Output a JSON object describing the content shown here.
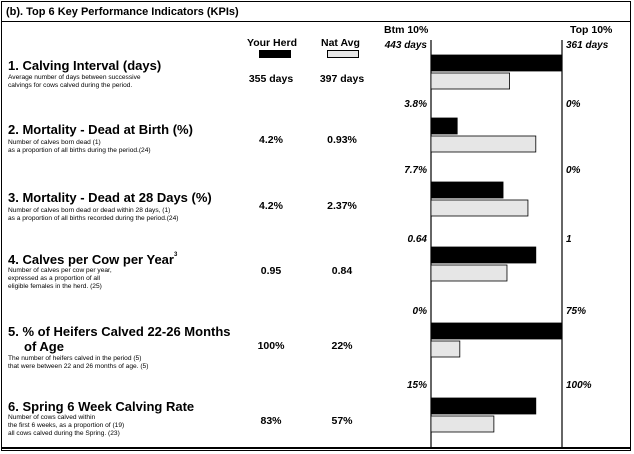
{
  "header": {
    "title": "(b). Top 6 Key Performance Indicators (KPIs)"
  },
  "columns": {
    "your_herd": "Your Herd",
    "nat_avg": "Nat Avg",
    "btm": "Btm 10%",
    "top": "Top 10%"
  },
  "colors": {
    "your_herd": "#000000",
    "nat_avg": "#e6e6e6"
  },
  "kpis": [
    {
      "title": "1. Calving Interval (days)",
      "desc": [
        "Average number of days between successive",
        "calvings for cows calved during the period."
      ],
      "your_herd": "355 days",
      "nat_avg": "397 days"
    },
    {
      "title": "2. Mortality - Dead at Birth (%)",
      "desc": [
        "Number of calves born dead (1)",
        "as a proportion of all births during the period.(24)"
      ],
      "your_herd": "4.2%",
      "nat_avg": "0.93%"
    },
    {
      "title": "3. Mortality - Dead at 28 Days (%)",
      "desc": [
        "Number of calves born dead or dead within 28 days, (1)",
        "as a proportion of all births recorded during the period.(24)"
      ],
      "your_herd": "4.2%",
      "nat_avg": "2.37%"
    },
    {
      "title": "4. Calves per Cow per Year",
      "title_sup": "3",
      "desc": [
        "Number of calves per cow per year,",
        "expressed as a proportion of all",
        "eligible females in the herd. (25)"
      ],
      "your_herd": "0.95",
      "nat_avg": "0.84"
    },
    {
      "title": "5. % of Heifers Calved 22-26 Months",
      "title2": "of Age",
      "desc": [
        "The number of heifers calved in the period  (5)",
        "that were between 22 and 26 months of age. (5)"
      ],
      "your_herd": "100%",
      "nat_avg": "22%"
    },
    {
      "title": "6. Spring 6 Week Calving Rate",
      "desc": [
        "Number of cows calved within",
        "the first 6 weeks, as a proportion of  (19)",
        "all cows calved during the Spring.   (23)"
      ],
      "your_herd": "83%",
      "nat_avg": "57%"
    }
  ],
  "chart_data": {
    "type": "bar",
    "orientation": "horizontal",
    "scale": "position between Btm 10% (0) and Top 10% (1)",
    "series": [
      {
        "name": "Your Herd",
        "values": [
          1.0,
          0.2,
          0.55,
          0.8,
          1.0,
          0.8
        ]
      },
      {
        "name": "Nat Avg",
        "values": [
          0.6,
          0.8,
          0.74,
          0.58,
          0.22,
          0.48
        ]
      }
    ],
    "btm_labels": [
      "443 days",
      "3.8%",
      "7.7%",
      "0.64",
      "0%",
      "15%"
    ],
    "top_labels": [
      "361 days",
      "0%",
      "0%",
      "1",
      "75%",
      "100%"
    ]
  }
}
